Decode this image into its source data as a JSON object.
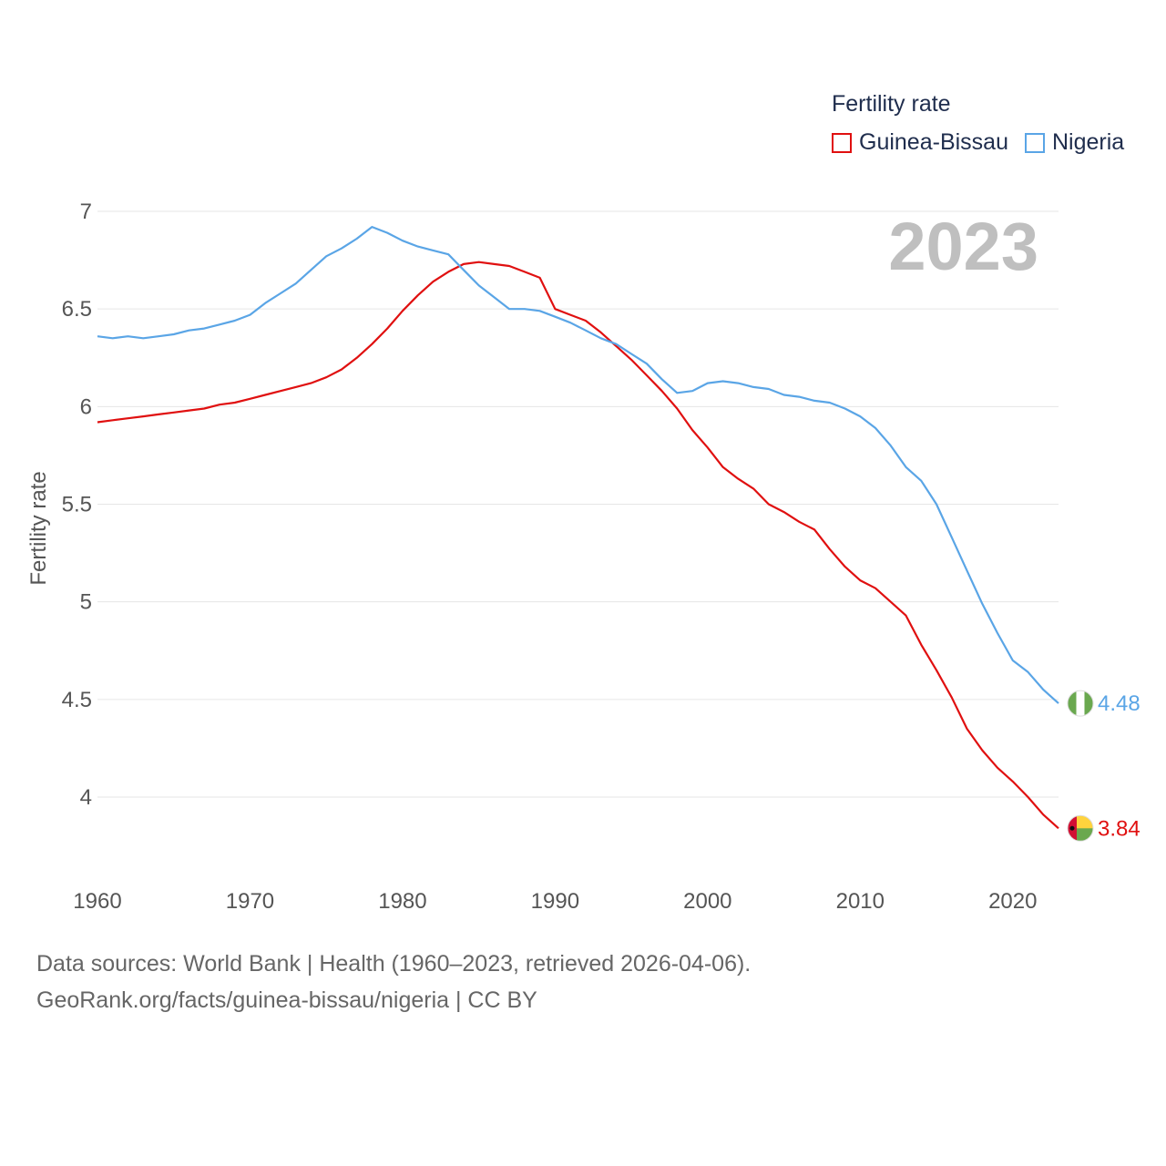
{
  "legend": {
    "title": "Fertility rate",
    "items": [
      {
        "label": "Guinea-Bissau",
        "color": "#e01010"
      },
      {
        "label": "Nigeria",
        "color": "#5aa5e6"
      }
    ]
  },
  "year_label": "2023",
  "source": {
    "line1": "Data sources: World Bank | Health (1960–2023, retrieved 2026-04-06).",
    "line2": "GeoRank.org/facts/guinea-bissau/nigeria | CC BY"
  },
  "chart_data": {
    "type": "line",
    "title": "Fertility rate",
    "xlabel": "",
    "ylabel": "Fertility rate",
    "xlim": [
      1960,
      2023
    ],
    "ylim": [
      3.8,
      7
    ],
    "x_ticks": [
      "1960",
      "1970",
      "1980",
      "1990",
      "2000",
      "2010",
      "2020"
    ],
    "y_ticks": [
      "4",
      "4.5",
      "5",
      "5.5",
      "6",
      "6.5",
      "7"
    ],
    "grid": true,
    "legend_position": "top-right",
    "x": [
      1960,
      1961,
      1962,
      1963,
      1964,
      1965,
      1966,
      1967,
      1968,
      1969,
      1970,
      1971,
      1972,
      1973,
      1974,
      1975,
      1976,
      1977,
      1978,
      1979,
      1980,
      1981,
      1982,
      1983,
      1984,
      1985,
      1986,
      1987,
      1988,
      1989,
      1990,
      1991,
      1992,
      1993,
      1994,
      1995,
      1996,
      1997,
      1998,
      1999,
      2000,
      2001,
      2002,
      2003,
      2004,
      2005,
      2006,
      2007,
      2008,
      2009,
      2010,
      2011,
      2012,
      2013,
      2014,
      2015,
      2016,
      2017,
      2018,
      2019,
      2020,
      2021,
      2022,
      2023
    ],
    "series": [
      {
        "name": "Guinea-Bissau",
        "color": "#e01010",
        "end_label": "3.84",
        "values": [
          5.92,
          5.93,
          5.94,
          5.95,
          5.96,
          5.97,
          5.98,
          5.99,
          6.01,
          6.02,
          6.04,
          6.06,
          6.08,
          6.1,
          6.12,
          6.15,
          6.19,
          6.25,
          6.32,
          6.4,
          6.49,
          6.57,
          6.64,
          6.69,
          6.73,
          6.74,
          6.73,
          6.72,
          6.69,
          6.66,
          6.5,
          6.47,
          6.44,
          6.38,
          6.31,
          6.24,
          6.16,
          6.08,
          5.99,
          5.88,
          5.79,
          5.69,
          5.63,
          5.58,
          5.5,
          5.46,
          5.41,
          5.37,
          5.27,
          5.18,
          5.11,
          5.07,
          5.0,
          4.93,
          4.78,
          4.65,
          4.51,
          4.35,
          4.24,
          4.15,
          4.08,
          4.0,
          3.91,
          3.84
        ]
      },
      {
        "name": "Nigeria",
        "color": "#5aa5e6",
        "end_label": "4.48",
        "values": [
          6.36,
          6.35,
          6.36,
          6.35,
          6.36,
          6.37,
          6.39,
          6.4,
          6.42,
          6.44,
          6.47,
          6.53,
          6.58,
          6.63,
          6.7,
          6.77,
          6.81,
          6.86,
          6.92,
          6.89,
          6.85,
          6.82,
          6.8,
          6.78,
          6.7,
          6.62,
          6.56,
          6.5,
          6.5,
          6.49,
          6.46,
          6.43,
          6.39,
          6.35,
          6.32,
          6.27,
          6.22,
          6.14,
          6.07,
          6.08,
          6.12,
          6.13,
          6.12,
          6.1,
          6.09,
          6.06,
          6.05,
          6.03,
          6.02,
          5.99,
          5.95,
          5.89,
          5.8,
          5.69,
          5.62,
          5.5,
          5.33,
          5.16,
          4.99,
          4.84,
          4.7,
          4.64,
          4.55,
          4.48
        ]
      }
    ]
  }
}
